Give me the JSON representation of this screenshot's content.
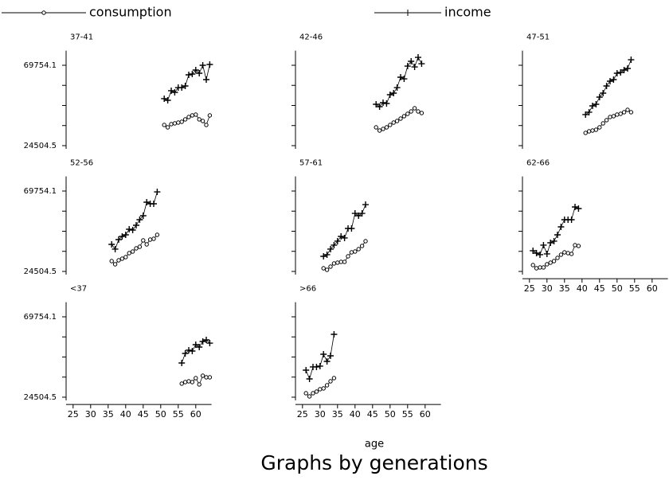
{
  "chart_data": [
    {
      "type": "line",
      "title": "37-41",
      "x": [
        51,
        52,
        53,
        54,
        55,
        56,
        57,
        58,
        59,
        60,
        61,
        62,
        63,
        64
      ],
      "series": [
        {
          "name": "consumption",
          "color": "#000000",
          "marker": "circle",
          "values": [
            36150,
            34800,
            36600,
            37050,
            37490,
            37940,
            39290,
            40630,
            41530,
            41980,
            39290,
            38390,
            36150,
            41530
          ]
        },
        {
          "name": "income",
          "color": "#000000",
          "marker": "plus",
          "values": [
            50940,
            50040,
            55420,
            54520,
            57200,
            57200,
            58100,
            64380,
            64820,
            67060,
            65270,
            69750,
            61690,
            70200
          ]
        }
      ],
      "xlim": [
        23,
        64.5
      ],
      "ylim": [
        22700,
        78000
      ],
      "yticks": [
        24504.5,
        {
          "value": 35817.4,
          "label": null
        },
        {
          "value": 47129.8,
          "label": null
        },
        {
          "value": 58442,
          "label": null
        },
        69754.1
      ]
    },
    {
      "type": "line",
      "title": "42-46",
      "x": [
        46,
        47,
        48,
        49,
        50,
        51,
        52,
        53,
        54,
        55,
        56,
        57,
        58,
        59
      ],
      "series": [
        {
          "name": "consumption",
          "color": "#000000",
          "marker": "circle",
          "values": [
            34800,
            33010,
            33910,
            34800,
            36150,
            37490,
            38390,
            39730,
            41080,
            42420,
            43760,
            45560,
            43760,
            42870
          ]
        },
        {
          "name": "income",
          "color": "#000000",
          "marker": "plus",
          "values": [
            47800,
            46450,
            48690,
            48240,
            53170,
            54070,
            57200,
            63030,
            62130,
            69300,
            71990,
            68850,
            74230,
            70640
          ]
        }
      ],
      "xlim": [
        23,
        64.5
      ],
      "ylim": [
        22700,
        78000
      ],
      "yticks": [
        {
          "value": 24504.5,
          "label": null
        },
        {
          "value": 35817.4,
          "label": null
        },
        {
          "value": 47129.8,
          "label": null
        },
        {
          "value": 58442,
          "label": null
        },
        {
          "value": 69754.1,
          "label": null
        }
      ]
    },
    {
      "type": "line",
      "title": "47-51",
      "x": [
        41,
        42,
        43,
        44,
        45,
        46,
        47,
        48,
        49,
        50,
        51,
        52,
        53,
        54
      ],
      "series": [
        {
          "name": "consumption",
          "color": "#000000",
          "marker": "circle",
          "values": [
            31670,
            32560,
            33010,
            33460,
            34800,
            37050,
            38840,
            40630,
            41080,
            41980,
            42420,
            43320,
            44660,
            43320
          ]
        },
        {
          "name": "income",
          "color": "#000000",
          "marker": "plus",
          "values": [
            41980,
            43320,
            46900,
            47800,
            51830,
            54070,
            58100,
            60790,
            61690,
            65270,
            65720,
            67060,
            67960,
            72880
          ]
        }
      ],
      "xlim": [
        23,
        64.5
      ],
      "ylim": [
        22700,
        78000
      ],
      "yticks": [
        {
          "value": 24504.5,
          "label": null
        },
        {
          "value": 35817.4,
          "label": null
        },
        {
          "value": 47129.8,
          "label": null
        },
        {
          "value": 58442,
          "label": null
        },
        {
          "value": 69754.1,
          "label": null
        }
      ]
    },
    {
      "type": "line",
      "title": "52-56",
      "x": [
        36,
        37,
        38,
        39,
        40,
        41,
        42,
        43,
        44,
        45,
        46,
        47,
        48,
        49
      ],
      "series": [
        {
          "name": "consumption",
          "color": "#000000",
          "marker": "circle",
          "values": [
            30320,
            28530,
            30770,
            31670,
            32560,
            34800,
            35700,
            37490,
            38390,
            41980,
            39730,
            42420,
            42870,
            45110
          ]
        },
        {
          "name": "income",
          "color": "#000000",
          "marker": "plus",
          "values": [
            39730,
            37050,
            42420,
            44210,
            45110,
            48240,
            47800,
            50480,
            53620,
            55860,
            63480,
            62580,
            62580,
            69300
          ]
        }
      ],
      "xlim": [
        23,
        64.5
      ],
      "ylim": [
        22700,
        78000
      ],
      "yticks": [
        24504.5,
        {
          "value": 35817.4,
          "label": null
        },
        {
          "value": 47129.8,
          "label": null
        },
        {
          "value": 58442,
          "label": null
        },
        69754.1
      ]
    },
    {
      "type": "line",
      "title": "57-61",
      "x": [
        31,
        32,
        33,
        34,
        35,
        36,
        37,
        38,
        39,
        40,
        41,
        42,
        43
      ],
      "series": [
        {
          "name": "consumption",
          "color": "#000000",
          "marker": "circle",
          "values": [
            26290,
            25400,
            27190,
            28980,
            29430,
            29880,
            29880,
            33010,
            35250,
            35700,
            37050,
            38840,
            41530
          ]
        },
        {
          "name": "income",
          "color": "#000000",
          "marker": "plus",
          "values": [
            33010,
            33910,
            37050,
            39290,
            41530,
            44210,
            43320,
            48690,
            48690,
            57200,
            55860,
            57200,
            62130
          ]
        }
      ],
      "xlim": [
        23,
        64.5
      ],
      "ylim": [
        22700,
        78000
      ],
      "yticks": [
        {
          "value": 24504.5,
          "label": null
        },
        {
          "value": 35817.4,
          "label": null
        },
        {
          "value": 47129.8,
          "label": null
        },
        {
          "value": 58442,
          "label": null
        },
        {
          "value": 69754.1,
          "label": null
        }
      ]
    },
    {
      "type": "line",
      "title": "62-66",
      "x": [
        26,
        27,
        28,
        29,
        30,
        31,
        32,
        33,
        34,
        35,
        36,
        37,
        38,
        39
      ],
      "series": [
        {
          "name": "consumption",
          "color": "#000000",
          "marker": "circle",
          "values": [
            28080,
            26290,
            26740,
            26740,
            28530,
            29430,
            30320,
            32120,
            33910,
            35250,
            34800,
            34360,
            39290,
            38840
          ]
        },
        {
          "name": "income",
          "color": "#000000",
          "marker": "plus",
          "values": [
            36150,
            34800,
            33910,
            39290,
            34360,
            40630,
            41530,
            45110,
            49590,
            53620,
            53620,
            53620,
            60790,
            59890
          ]
        }
      ],
      "xlim": [
        23,
        64.5
      ],
      "ylim": [
        22700,
        78000
      ],
      "yticks": [
        {
          "value": 24504.5,
          "label": null
        },
        {
          "value": 35817.4,
          "label": null
        },
        {
          "value": 47129.8,
          "label": null
        },
        {
          "value": 58442,
          "label": null
        },
        {
          "value": 69754.1,
          "label": null
        }
      ],
      "xticks": [
        25,
        30,
        35,
        40,
        45,
        50,
        55,
        60
      ]
    },
    {
      "type": "line",
      "title": "<37",
      "x": [
        56,
        57,
        58,
        59,
        60,
        61,
        62,
        63,
        64
      ],
      "series": [
        {
          "name": "consumption",
          "color": "#000000",
          "marker": "circle",
          "values": [
            32120,
            33010,
            33460,
            33010,
            35250,
            31670,
            36600,
            35700,
            35700
          ]
        },
        {
          "name": "income",
          "color": "#000000",
          "marker": "plus",
          "values": [
            43760,
            49140,
            50940,
            50480,
            54070,
            52720,
            55860,
            56760,
            54960
          ]
        }
      ],
      "xlim": [
        23,
        64.5
      ],
      "ylim": [
        22700,
        78000
      ],
      "yticks": [
        24504.5,
        {
          "value": 35817.4,
          "label": null
        },
        {
          "value": 47129.8,
          "label": null
        },
        {
          "value": 58442,
          "label": null
        },
        69754.1
      ],
      "xticks": [
        25,
        30,
        35,
        40,
        45,
        50,
        55,
        60
      ]
    },
    {
      "type": "line",
      "title": ">66",
      "x": [
        26,
        27,
        28,
        29,
        30,
        31,
        32,
        33,
        34
      ],
      "series": [
        {
          "name": "consumption",
          "color": "#000000",
          "marker": "circle",
          "values": [
            26740,
            24950,
            26740,
            27640,
            28980,
            29430,
            31220,
            33460,
            35250
          ]
        },
        {
          "name": "income",
          "color": "#000000",
          "marker": "plus",
          "values": [
            39730,
            34800,
            41530,
            41530,
            41980,
            48690,
            44660,
            47800,
            59890
          ]
        }
      ],
      "xlim": [
        23,
        64.5
      ],
      "ylim": [
        22700,
        78000
      ],
      "yticks": [
        {
          "value": 24504.5,
          "label": null
        },
        {
          "value": 35817.4,
          "label": null
        },
        {
          "value": 47129.8,
          "label": null
        },
        {
          "value": 58442,
          "label": null
        },
        {
          "value": 69754.1,
          "label": null
        }
      ],
      "xticks": [
        25,
        30,
        35,
        40,
        45,
        50,
        55,
        60
      ]
    }
  ],
  "xlabel": "age",
  "caption": "Graphs by generations"
}
